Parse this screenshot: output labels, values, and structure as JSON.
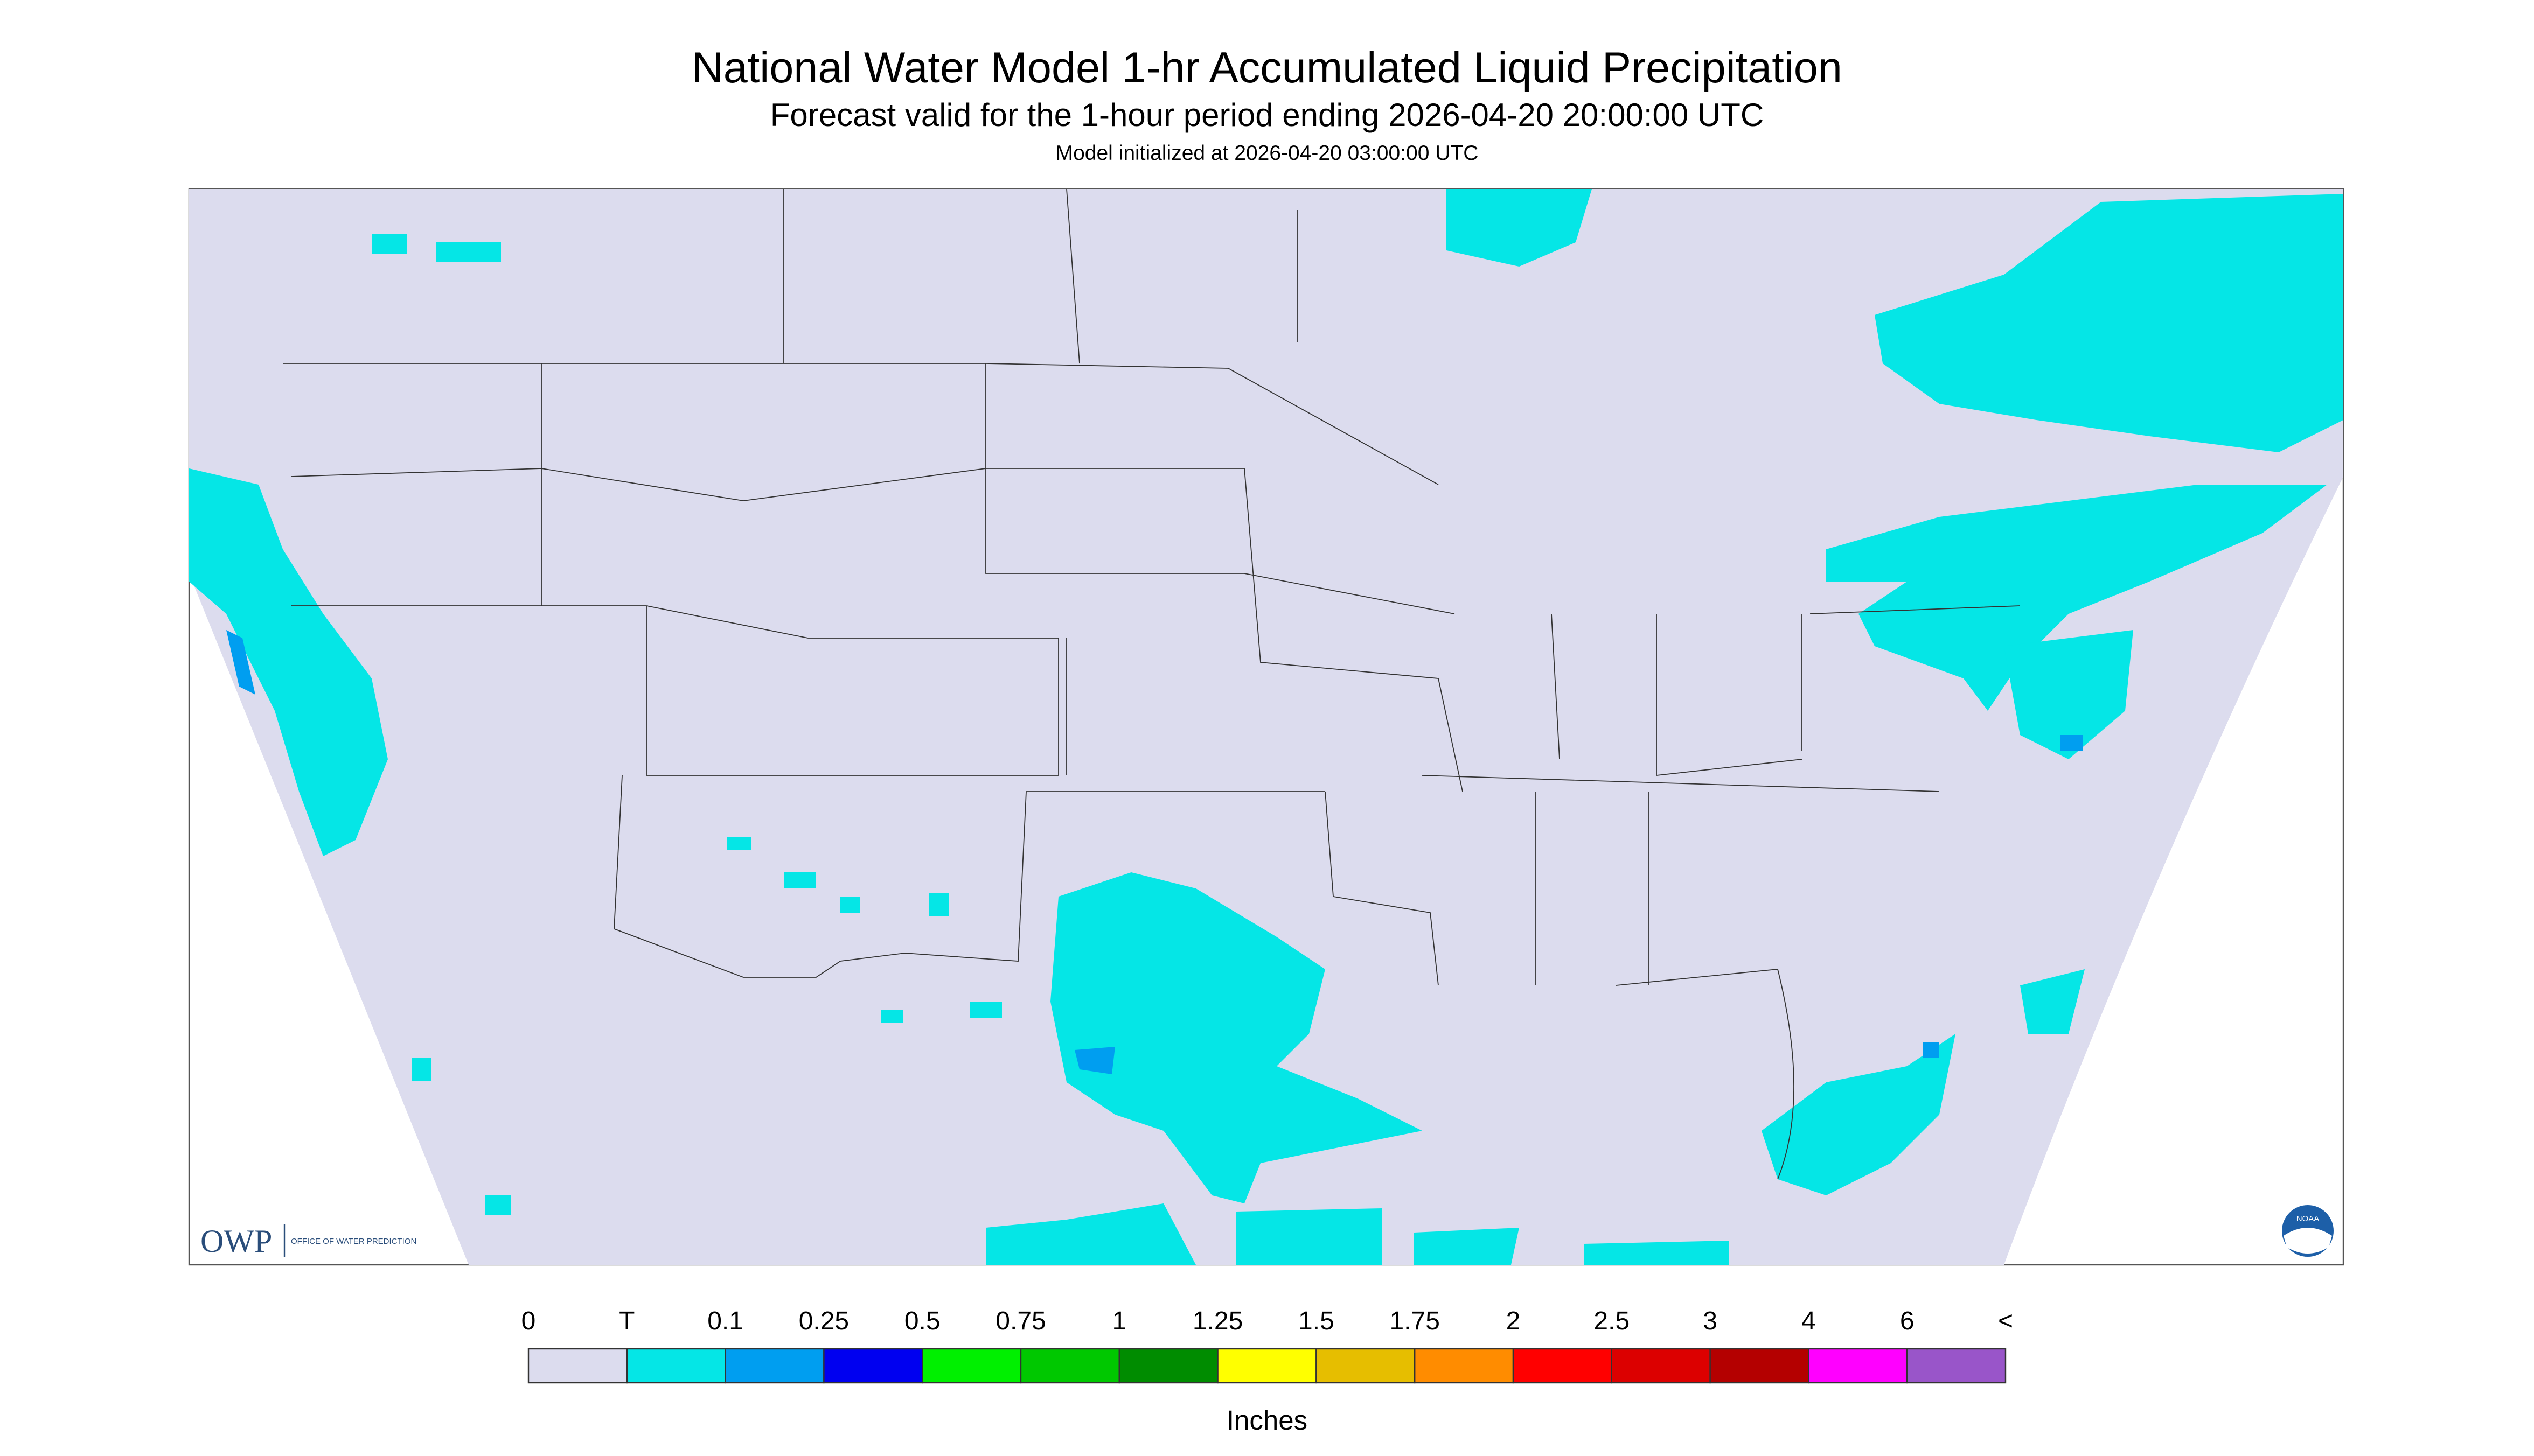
{
  "header": {
    "title": "National Water Model 1-hr Accumulated Liquid Precipitation",
    "subtitle": "Forecast valid for the 1-hour period ending 2026-04-20 20:00:00 UTC",
    "initialized": "Model initialized at 2026-04-20 03:00:00 UTC"
  },
  "legend": {
    "labels": [
      "0",
      "T",
      "0.1",
      "0.25",
      "0.5",
      "0.75",
      "1",
      "1.25",
      "1.5",
      "1.75",
      "2",
      "2.5",
      "3",
      "4",
      "6",
      "<"
    ],
    "colors": [
      "#dcdcee",
      "#05e6e6",
      "#009ef0",
      "#0000f0",
      "#00f000",
      "#00c800",
      "#008c00",
      "#ffff00",
      "#e6be00",
      "#ff8c00",
      "#ff0000",
      "#dc0000",
      "#b40000",
      "#ff00ff",
      "#9955c9"
    ],
    "unit": "Inches"
  },
  "logos": {
    "owp": "OWP",
    "owp_name": "OFFICE OF WATER PREDICTION",
    "noaa": "NOAA"
  }
}
